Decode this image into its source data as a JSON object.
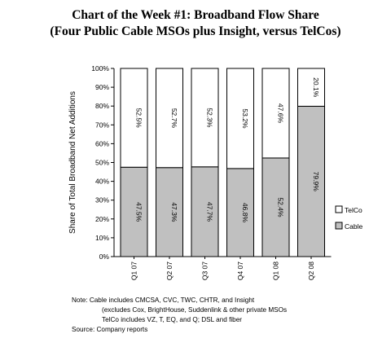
{
  "title_line1": "Chart of the Week #1: Broadband Flow Share",
  "title_line2": "(Four Public Cable MSOs plus Insight, versus TelCos)",
  "chart_data": {
    "type": "bar",
    "stacked": true,
    "categories": [
      "Q1 07",
      "Q2 07",
      "Q3 07",
      "Q4 07",
      "Q1 08",
      "Q2 08"
    ],
    "series": [
      {
        "name": "Cable",
        "values": [
          47.5,
          47.3,
          47.7,
          46.8,
          52.4,
          79.9
        ],
        "labels": [
          "47.5%",
          "47.3%",
          "47.7%",
          "46.8%",
          "52.4%",
          "79.9%"
        ],
        "color": "#c0c0c0"
      },
      {
        "name": "TelCo",
        "values": [
          52.5,
          52.7,
          52.3,
          53.2,
          47.6,
          20.1
        ],
        "labels": [
          "52.5%",
          "52.7%",
          "52.3%",
          "53.2%",
          "47.6%",
          "20.1%"
        ],
        "color": "#ffffff"
      }
    ],
    "ylabel": "Share of Total Broadband Net Additions",
    "yticks": [
      "0%",
      "10%",
      "20%",
      "30%",
      "40%",
      "50%",
      "60%",
      "70%",
      "80%",
      "90%",
      "100%"
    ],
    "ylim": [
      0,
      100
    ],
    "legend_placement": "right",
    "grid": false
  },
  "notes": {
    "line1": "Note: Cable includes CMCSA, CVC, TWC, CHTR, and Insight",
    "line2": "(excludes Cox, BrightHouse, Suddenlink & other private  MSOs",
    "line3": "TelCo includes VZ, T, EQ, and Q; DSL and fiber",
    "line4": "Source: Company reports"
  }
}
